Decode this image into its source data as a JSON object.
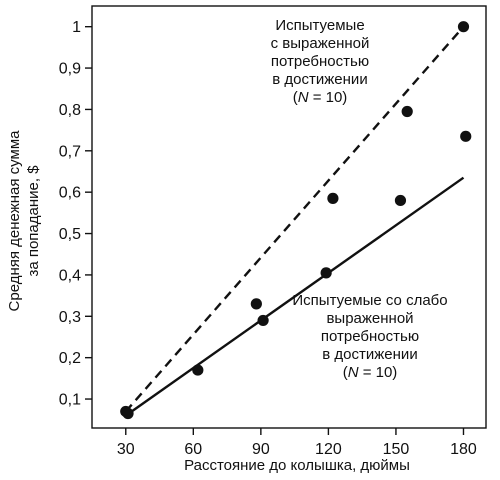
{
  "chart_data": {
    "type": "scatter",
    "xlabel": "Расстояние до колышка, дюймы",
    "ylabel_lines": [
      "Средняя денежная сумма",
      "за попадание, $"
    ],
    "xlim": [
      15,
      190
    ],
    "ylim": [
      0.03,
      1.05
    ],
    "x_ticks": [
      30,
      60,
      90,
      120,
      150,
      180
    ],
    "x_tick_labels": [
      "30",
      "60",
      "90",
      "120",
      "150",
      "180"
    ],
    "y_ticks": [
      0.1,
      0.2,
      0.3,
      0.4,
      0.5,
      0.6,
      0.7,
      0.8,
      0.9,
      1.0
    ],
    "y_tick_labels": [
      "0,1",
      "0,2",
      "0,3",
      "0,4",
      "0,5",
      "0,6",
      "0,7",
      "0,8",
      "0,9",
      "1"
    ],
    "grid": false,
    "series": [
      {
        "key": "high",
        "line_style": "dashed",
        "x": [
          30,
          122,
          155,
          180
        ],
        "y": [
          0.07,
          0.585,
          0.795,
          1.0
        ],
        "fit_line": {
          "x": [
            30,
            180
          ],
          "y": [
            0.07,
            1.0
          ]
        },
        "annotation": {
          "lines": [
            "Испытуемые",
            "с выраженной",
            "потребностью",
            "в достижении"
          ],
          "n_line": {
            "open": "(",
            "var": "N",
            "rest": " = 10)"
          }
        }
      },
      {
        "key": "low",
        "line_style": "solid",
        "x": [
          31,
          62,
          88,
          91,
          119,
          152,
          181
        ],
        "y": [
          0.065,
          0.17,
          0.33,
          0.29,
          0.405,
          0.58,
          0.735
        ],
        "fit_line": {
          "x": [
            30,
            180
          ],
          "y": [
            0.06,
            0.635
          ]
        },
        "annotation": {
          "lines": [
            "Испытуемые со слабо",
            "выраженной",
            "потребностью",
            "в достижении"
          ],
          "n_line": {
            "open": "(",
            "var": "N",
            "rest": " = 10)"
          }
        }
      }
    ],
    "colors": {
      "ink": "#111111",
      "background": "#ffffff"
    }
  }
}
